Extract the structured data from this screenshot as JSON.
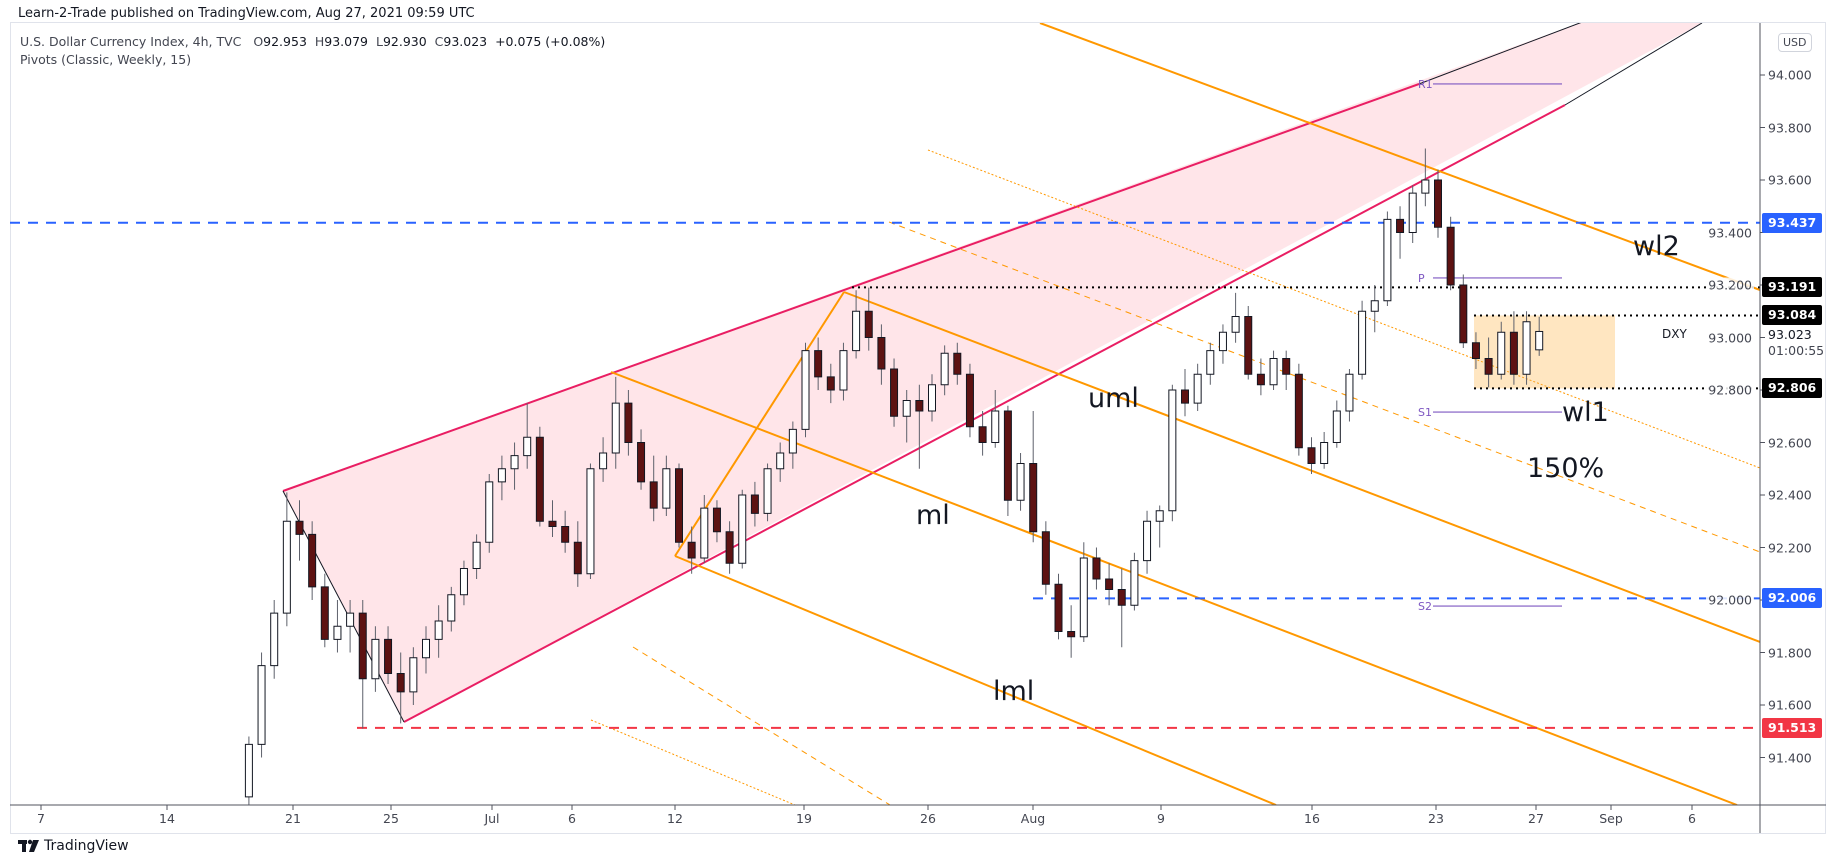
{
  "header": {
    "published": "Learn-2-Trade published on TradingView.com, Aug 27, 2021 09:59 UTC",
    "symbol": "U.S. Dollar Currency Index, 4h, TVC",
    "open_label": "O",
    "open": "92.953",
    "high_label": "H",
    "high": "93.079",
    "low_label": "L",
    "low": "92.930",
    "close_label": "C",
    "close": "93.023",
    "change": "+0.075 (+0.08%)",
    "indicator": "Pivots (Classic, Weekly, 15)"
  },
  "price_axis": {
    "currency_button": "USD",
    "ticks": [
      "94.000",
      "93.800",
      "93.600",
      "93.400",
      "93.200",
      "93.000",
      "92.800",
      "92.600",
      "92.400",
      "92.200",
      "92.000",
      "91.800",
      "91.600",
      "91.400"
    ],
    "badges": [
      {
        "value": "93.437",
        "color": "#2962ff"
      },
      {
        "value": "93.191",
        "color": "#000000"
      },
      {
        "value": "93.084",
        "color": "#000000"
      },
      {
        "value": "92.806",
        "color": "#000000"
      },
      {
        "value": "92.006",
        "color": "#2962ff"
      },
      {
        "value": "91.513",
        "color": "#f23645"
      }
    ],
    "symbol_short": "DXY",
    "last_price": "93.023",
    "countdown": "01:00:55"
  },
  "time_axis": {
    "ticks": [
      "7",
      "14",
      "21",
      "25",
      "Jul",
      "6",
      "12",
      "19",
      "26",
      "Aug",
      "9",
      "16",
      "23",
      "27",
      "Sep",
      "6"
    ]
  },
  "annotations": {
    "wl2": "wl2",
    "wl1": "wl1",
    "uml": "uml",
    "ml": "ml",
    "lml": "lml",
    "pct": "150%"
  },
  "pivots": {
    "R1": "R1",
    "P": "P",
    "S1": "S1",
    "S2": "S2"
  },
  "footer": {
    "brand": "TradingView"
  },
  "chart_data": {
    "type": "candlestick",
    "title": "U.S. Dollar Currency Index, 4h, TVC",
    "ylim": [
      91.2,
      94.2
    ],
    "grid": false,
    "colors": {
      "up": "#ffffff",
      "down": "#5d1212",
      "pitchfork": "#ff9800",
      "wedge": "#e91e63",
      "pivot": "#7e57c2"
    },
    "levels": {
      "support_blue_upper": 93.437,
      "resistance_dotted": 93.191,
      "range_top": 93.084,
      "range_bottom": 92.806,
      "support_blue_lower": 92.006,
      "low_red": 91.513,
      "pivot_R1": 93.966,
      "pivot_P": 93.227,
      "pivot_S1": 92.716,
      "pivot_S2": 91.977
    },
    "candles": [
      [
        91.25,
        91.48,
        91.15,
        91.45
      ],
      [
        91.45,
        91.8,
        91.4,
        91.75
      ],
      [
        91.75,
        92.0,
        91.7,
        91.95
      ],
      [
        91.95,
        92.41,
        91.9,
        92.3
      ],
      [
        92.3,
        92.38,
        92.15,
        92.25
      ],
      [
        92.25,
        92.3,
        92.0,
        92.05
      ],
      [
        92.05,
        92.1,
        91.82,
        91.85
      ],
      [
        91.85,
        92.0,
        91.8,
        91.9
      ],
      [
        91.9,
        92.0,
        91.8,
        91.95
      ],
      [
        91.95,
        92.0,
        91.51,
        91.7
      ],
      [
        91.7,
        91.9,
        91.65,
        91.85
      ],
      [
        91.85,
        91.9,
        91.68,
        91.72
      ],
      [
        91.72,
        91.8,
        91.53,
        91.65
      ],
      [
        91.65,
        91.82,
        91.6,
        91.78
      ],
      [
        91.78,
        91.9,
        91.72,
        91.85
      ],
      [
        91.85,
        91.98,
        91.78,
        91.92
      ],
      [
        91.92,
        92.05,
        91.88,
        92.02
      ],
      [
        92.02,
        92.15,
        91.98,
        92.12
      ],
      [
        92.12,
        92.25,
        92.08,
        92.22
      ],
      [
        92.22,
        92.48,
        92.18,
        92.45
      ],
      [
        92.45,
        92.55,
        92.38,
        92.5
      ],
      [
        92.5,
        92.6,
        92.42,
        92.55
      ],
      [
        92.55,
        92.75,
        92.5,
        92.62
      ],
      [
        92.62,
        92.66,
        92.28,
        92.3
      ],
      [
        92.3,
        92.38,
        92.24,
        92.28
      ],
      [
        92.28,
        92.34,
        92.18,
        92.22
      ],
      [
        92.22,
        92.3,
        92.05,
        92.1
      ],
      [
        92.1,
        92.52,
        92.08,
        92.5
      ],
      [
        92.5,
        92.62,
        92.45,
        92.56
      ],
      [
        92.56,
        92.85,
        92.5,
        92.75
      ],
      [
        92.75,
        92.8,
        92.55,
        92.6
      ],
      [
        92.6,
        92.65,
        92.42,
        92.45
      ],
      [
        92.45,
        92.55,
        92.3,
        92.35
      ],
      [
        92.35,
        92.55,
        92.32,
        92.5
      ],
      [
        92.5,
        92.52,
        92.2,
        92.22
      ],
      [
        92.22,
        92.28,
        92.1,
        92.16
      ],
      [
        92.16,
        92.4,
        92.14,
        92.35
      ],
      [
        92.35,
        92.38,
        92.22,
        92.26
      ],
      [
        92.26,
        92.3,
        92.1,
        92.14
      ],
      [
        92.14,
        92.42,
        92.12,
        92.4
      ],
      [
        92.4,
        92.45,
        92.28,
        92.33
      ],
      [
        92.33,
        92.52,
        92.3,
        92.5
      ],
      [
        92.5,
        92.6,
        92.45,
        92.56
      ],
      [
        92.56,
        92.68,
        92.5,
        92.65
      ],
      [
        92.65,
        92.98,
        92.62,
        92.95
      ],
      [
        92.95,
        93.0,
        92.8,
        92.85
      ],
      [
        92.85,
        92.9,
        92.75,
        92.8
      ],
      [
        92.8,
        92.98,
        92.76,
        92.95
      ],
      [
        92.95,
        93.18,
        92.92,
        93.1
      ],
      [
        93.1,
        93.19,
        92.95,
        93.0
      ],
      [
        93.0,
        93.05,
        92.82,
        92.88
      ],
      [
        92.88,
        92.92,
        92.66,
        92.7
      ],
      [
        92.7,
        92.8,
        92.6,
        92.76
      ],
      [
        92.76,
        92.82,
        92.5,
        92.72
      ],
      [
        92.72,
        92.86,
        92.68,
        92.82
      ],
      [
        92.82,
        92.97,
        92.78,
        92.94
      ],
      [
        92.94,
        92.98,
        92.82,
        92.86
      ],
      [
        92.86,
        92.9,
        92.62,
        92.66
      ],
      [
        92.66,
        92.72,
        92.55,
        92.6
      ],
      [
        92.6,
        92.8,
        92.58,
        92.72
      ],
      [
        92.72,
        92.74,
        92.32,
        92.38
      ],
      [
        92.38,
        92.56,
        92.34,
        92.52
      ],
      [
        92.52,
        92.72,
        92.22,
        92.26
      ],
      [
        92.26,
        92.3,
        92.02,
        92.06
      ],
      [
        92.06,
        92.1,
        91.85,
        91.88
      ],
      [
        91.88,
        91.98,
        91.78,
        91.86
      ],
      [
        91.86,
        92.22,
        91.84,
        92.16
      ],
      [
        92.16,
        92.2,
        92.04,
        92.08
      ],
      [
        92.08,
        92.14,
        91.98,
        92.04
      ],
      [
        92.04,
        92.12,
        91.82,
        91.98
      ],
      [
        91.98,
        92.18,
        91.96,
        92.15
      ],
      [
        92.15,
        92.34,
        92.1,
        92.3
      ],
      [
        92.3,
        92.36,
        92.2,
        92.34
      ],
      [
        92.34,
        92.82,
        92.3,
        92.8
      ],
      [
        92.8,
        92.88,
        92.7,
        92.75
      ],
      [
        92.75,
        92.9,
        92.72,
        92.86
      ],
      [
        92.86,
        92.98,
        92.82,
        92.95
      ],
      [
        92.95,
        93.05,
        92.9,
        93.02
      ],
      [
        93.02,
        93.17,
        92.98,
        93.08
      ],
      [
        93.08,
        93.12,
        92.84,
        92.86
      ],
      [
        92.86,
        92.92,
        92.78,
        92.82
      ],
      [
        92.82,
        92.95,
        92.8,
        92.92
      ],
      [
        92.92,
        92.95,
        92.8,
        92.86
      ],
      [
        92.86,
        92.9,
        92.55,
        92.58
      ],
      [
        92.58,
        92.62,
        92.48,
        92.52
      ],
      [
        92.52,
        92.64,
        92.5,
        92.6
      ],
      [
        92.6,
        92.76,
        92.58,
        92.72
      ],
      [
        92.72,
        92.88,
        92.68,
        92.86
      ],
      [
        92.86,
        93.14,
        92.84,
        93.1
      ],
      [
        93.1,
        93.2,
        93.02,
        93.14
      ],
      [
        93.14,
        93.48,
        93.12,
        93.45
      ],
      [
        93.45,
        93.5,
        93.3,
        93.4
      ],
      [
        93.4,
        93.58,
        93.36,
        93.55
      ],
      [
        93.55,
        93.72,
        93.5,
        93.6
      ],
      [
        93.6,
        93.64,
        93.38,
        93.42
      ],
      [
        93.42,
        93.46,
        93.18,
        93.2
      ],
      [
        93.2,
        93.24,
        92.96,
        92.98
      ],
      [
        92.98,
        93.02,
        92.88,
        92.92
      ],
      [
        92.92,
        93.0,
        92.81,
        92.86
      ],
      [
        92.86,
        93.06,
        92.84,
        93.02
      ],
      [
        93.02,
        93.1,
        92.82,
        92.86
      ],
      [
        92.86,
        93.1,
        92.82,
        93.06
      ],
      [
        92.953,
        93.079,
        92.93,
        93.023
      ]
    ]
  }
}
